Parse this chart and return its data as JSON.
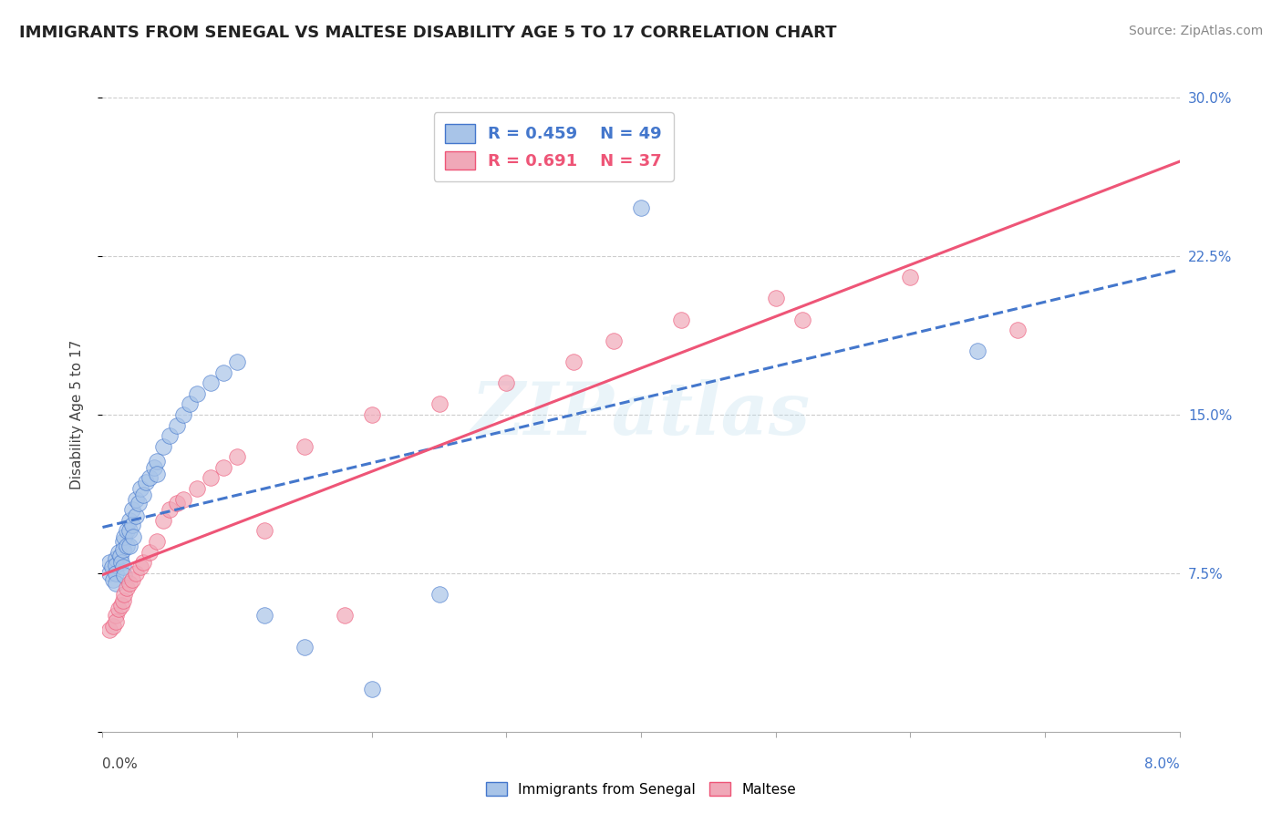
{
  "title": "IMMIGRANTS FROM SENEGAL VS MALTESE DISABILITY AGE 5 TO 17 CORRELATION CHART",
  "source": "Source: ZipAtlas.com",
  "xlabel_label": "Immigrants from Senegal",
  "xlabel2_label": "Maltese",
  "ylabel": "Disability Age 5 to 17",
  "xlim": [
    0.0,
    0.08
  ],
  "ylim": [
    0.0,
    0.3
  ],
  "yticks": [
    0.0,
    0.075,
    0.15,
    0.225,
    0.3
  ],
  "yticklabels_right": [
    "",
    "7.5%",
    "15.0%",
    "22.5%",
    "30.0%"
  ],
  "xtick_positions": [
    0.0,
    0.01,
    0.02,
    0.03,
    0.04,
    0.05,
    0.06,
    0.07,
    0.08
  ],
  "legend_r1": "R = 0.459",
  "legend_n1": "N = 49",
  "legend_r2": "R = 0.691",
  "legend_n2": "N = 37",
  "color_blue": "#A8C4E8",
  "color_pink": "#F0A8B8",
  "line_blue": "#4477CC",
  "line_pink": "#EE5577",
  "watermark_text": "ZIPatlas",
  "background": "#FFFFFF",
  "grid_color": "#CCCCCC",
  "blue_x": [
    0.0005,
    0.0005,
    0.0007,
    0.0008,
    0.001,
    0.001,
    0.001,
    0.001,
    0.0012,
    0.0013,
    0.0014,
    0.0015,
    0.0015,
    0.0015,
    0.0016,
    0.0016,
    0.0018,
    0.0018,
    0.002,
    0.002,
    0.002,
    0.0022,
    0.0022,
    0.0023,
    0.0025,
    0.0025,
    0.0027,
    0.0028,
    0.003,
    0.0032,
    0.0035,
    0.0038,
    0.004,
    0.004,
    0.0045,
    0.005,
    0.0055,
    0.006,
    0.0065,
    0.007,
    0.008,
    0.009,
    0.01,
    0.012,
    0.015,
    0.02,
    0.025,
    0.04,
    0.065
  ],
  "blue_y": [
    0.075,
    0.08,
    0.078,
    0.072,
    0.082,
    0.079,
    0.075,
    0.07,
    0.085,
    0.083,
    0.08,
    0.09,
    0.086,
    0.078,
    0.092,
    0.074,
    0.095,
    0.088,
    0.1,
    0.095,
    0.088,
    0.105,
    0.098,
    0.092,
    0.11,
    0.102,
    0.108,
    0.115,
    0.112,
    0.118,
    0.12,
    0.125,
    0.128,
    0.122,
    0.135,
    0.14,
    0.145,
    0.15,
    0.155,
    0.16,
    0.165,
    0.17,
    0.175,
    0.055,
    0.04,
    0.02,
    0.065,
    0.248,
    0.18
  ],
  "pink_x": [
    0.0005,
    0.0008,
    0.001,
    0.001,
    0.0012,
    0.0014,
    0.0015,
    0.0016,
    0.0018,
    0.002,
    0.0022,
    0.0025,
    0.0028,
    0.003,
    0.0035,
    0.004,
    0.0045,
    0.005,
    0.0055,
    0.006,
    0.007,
    0.008,
    0.009,
    0.01,
    0.012,
    0.015,
    0.018,
    0.02,
    0.025,
    0.03,
    0.035,
    0.038,
    0.043,
    0.05,
    0.052,
    0.06,
    0.068
  ],
  "pink_y": [
    0.048,
    0.05,
    0.055,
    0.052,
    0.058,
    0.06,
    0.062,
    0.065,
    0.068,
    0.07,
    0.072,
    0.075,
    0.078,
    0.08,
    0.085,
    0.09,
    0.1,
    0.105,
    0.108,
    0.11,
    0.115,
    0.12,
    0.125,
    0.13,
    0.095,
    0.135,
    0.055,
    0.15,
    0.155,
    0.165,
    0.175,
    0.185,
    0.195,
    0.205,
    0.195,
    0.215,
    0.19
  ]
}
